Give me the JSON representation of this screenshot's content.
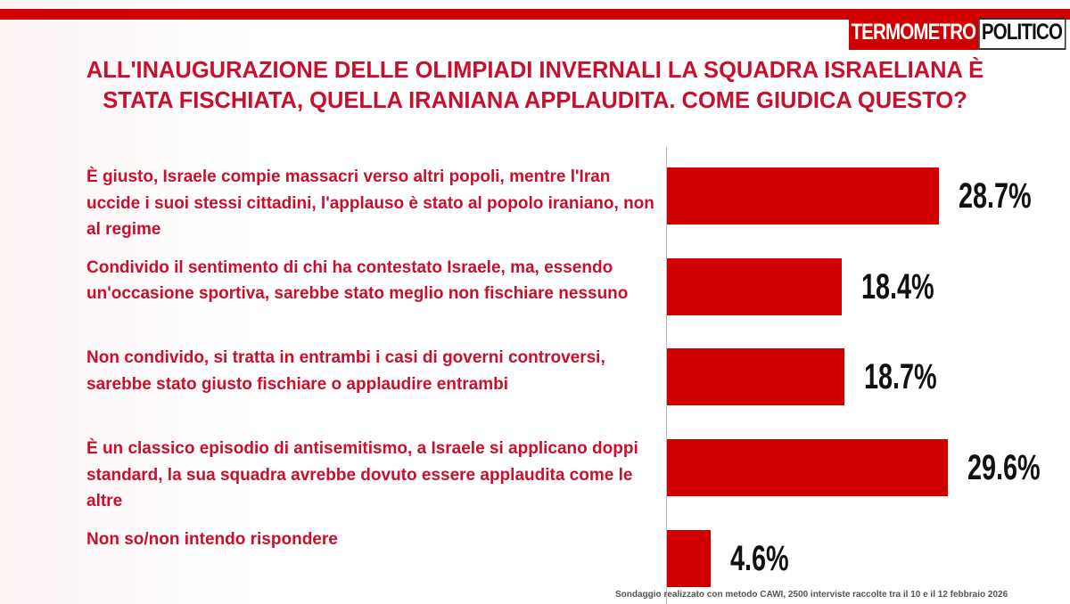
{
  "brand": {
    "left": "TERMOMETRO",
    "right": "POLITICO"
  },
  "chart_data": {
    "type": "hbar",
    "title": "ALL'INAUGURAZIONE DELLE OLIMPIADI INVERNALI LA SQUADRA ISRAELIANA È STATA FISCHIATA, QUELLA IRANIANA APPLAUDITA. COME GIUDICA QUESTO?",
    "categories": [
      "È giusto, Israele compie massacri verso altri popoli, mentre l'Iran uccide i suoi stessi cittadini, l'applauso è stato al popolo iraniano, non al regime",
      "Condivido il sentimento di chi ha contestato Israele, ma, essendo un'occasione sportiva, sarebbe stato meglio non fischiare nessuno",
      "Non condivido, si tratta in entrambi i casi di governi controversi, sarebbe stato giusto fischiare o applaudire entrambi",
      "È un classico episodio di antisemitismo, a Israele si applicano doppi standard, la sua squadra avrebbe dovuto essere applaudita come le altre",
      "Non so/non intendo rispondere"
    ],
    "values": [
      28.7,
      18.4,
      18.7,
      29.6,
      4.6
    ],
    "value_labels": [
      "28.7%",
      "18.4%",
      "18.7%",
      "29.6%",
      "4.6%"
    ],
    "color": "#d00000",
    "note": "Sondaggio realizzato con metodo CAWI, 2500 interviste raccolte tra il 10 e il 12 febbraio 2026"
  }
}
